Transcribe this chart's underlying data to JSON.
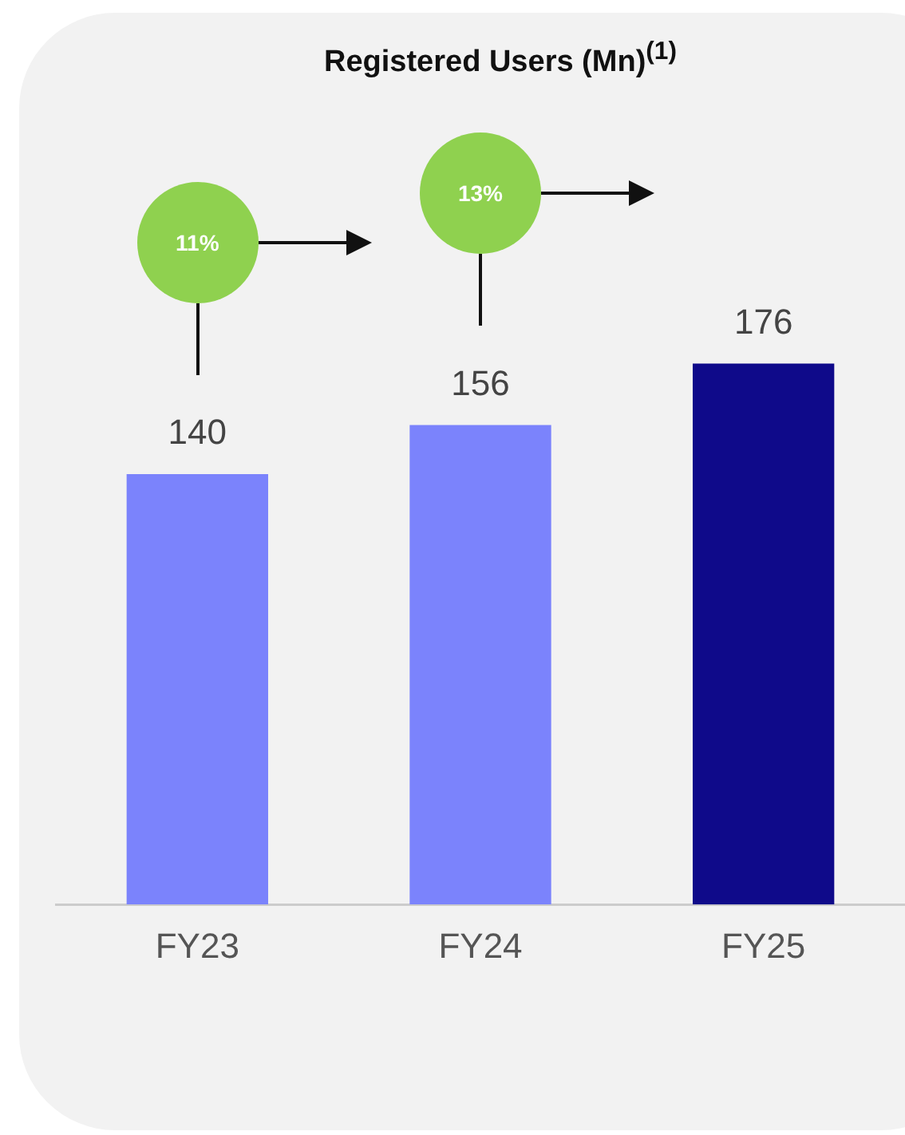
{
  "chart_data": {
    "type": "bar",
    "title": "Registered Users (Mn)$^{(1)}$",
    "categories": [
      "FY23",
      "FY24",
      "FY25"
    ],
    "values": [
      140,
      156,
      176
    ],
    "colors": [
      "#7b83fc",
      "#7b83fc",
      "#0f0a8a"
    ],
    "tick_labels": "x",
    "grid": false,
    "legend": false,
    "data_labels": true,
    "annotations": [
      "11%",
      "13%"
    ]
  }
}
